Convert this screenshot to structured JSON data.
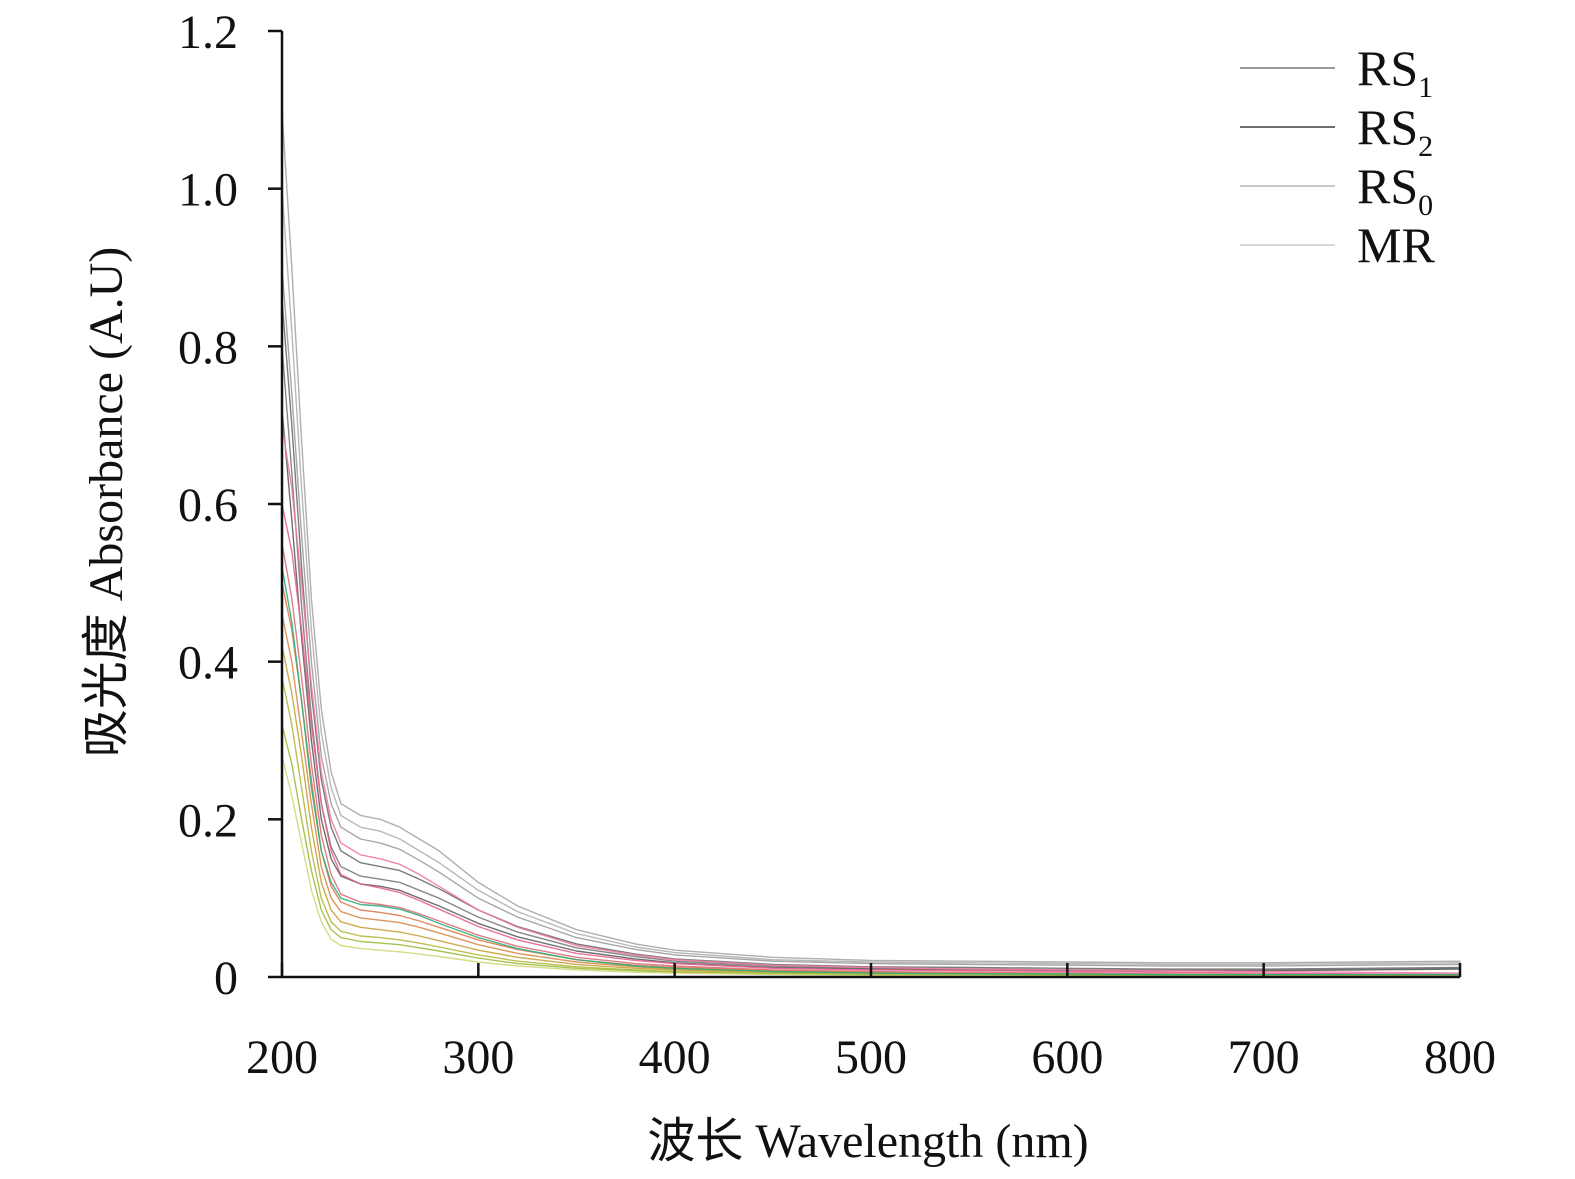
{
  "chart_data": {
    "type": "line",
    "title": "",
    "xlabel": "波长 Wavelength (nm)",
    "ylabel": "吸光度 Absorbance (A.U)",
    "xlim": [
      200,
      800
    ],
    "ylim": [
      0,
      1.2
    ],
    "x_ticks": [
      "200",
      "300",
      "400",
      "500",
      "600",
      "700",
      "800"
    ],
    "y_ticks": [
      "0",
      "0.2",
      "0.4",
      "0.6",
      "0.8",
      "1.0",
      "1.2"
    ],
    "grid": false,
    "legend_position": "top-right",
    "legend": [
      {
        "base": "RS",
        "sub": "1",
        "color": "#9a9a9a"
      },
      {
        "base": "RS",
        "sub": "2",
        "color": "#6f6f6f"
      },
      {
        "base": "RS",
        "sub": "0",
        "color": "#c8c8c8"
      },
      {
        "base": "MR",
        "sub": "",
        "color": "#d8d8d8"
      }
    ],
    "x": [
      200,
      205,
      210,
      215,
      220,
      225,
      230,
      240,
      250,
      260,
      270,
      280,
      300,
      320,
      350,
      380,
      400,
      450,
      500,
      550,
      600,
      650,
      700,
      750,
      800
    ],
    "series": [
      {
        "group": "RS1",
        "color": "#a6a6a6",
        "values": [
          1.1,
          0.9,
          0.68,
          0.48,
          0.34,
          0.26,
          0.22,
          0.205,
          0.2,
          0.19,
          0.175,
          0.16,
          0.12,
          0.09,
          0.06,
          0.042,
          0.034,
          0.025,
          0.021,
          0.02,
          0.019,
          0.018,
          0.018,
          0.019,
          0.02
        ]
      },
      {
        "group": "RS1",
        "color": "#b0b0b0",
        "values": [
          1.0,
          0.82,
          0.62,
          0.44,
          0.31,
          0.24,
          0.205,
          0.19,
          0.185,
          0.175,
          0.16,
          0.145,
          0.11,
          0.083,
          0.055,
          0.038,
          0.031,
          0.022,
          0.019,
          0.018,
          0.017,
          0.016,
          0.016,
          0.017,
          0.018
        ]
      },
      {
        "group": "RS1",
        "color": "#9c9c9c",
        "values": [
          0.9,
          0.74,
          0.56,
          0.4,
          0.28,
          0.22,
          0.19,
          0.175,
          0.17,
          0.162,
          0.148,
          0.133,
          0.1,
          0.076,
          0.05,
          0.035,
          0.028,
          0.02,
          0.017,
          0.016,
          0.015,
          0.014,
          0.014,
          0.015,
          0.016
        ]
      },
      {
        "group": "RS2",
        "color": "#6e6e6e",
        "values": [
          0.86,
          0.7,
          0.52,
          0.36,
          0.25,
          0.19,
          0.16,
          0.145,
          0.14,
          0.135,
          0.124,
          0.112,
          0.085,
          0.064,
          0.042,
          0.029,
          0.023,
          0.016,
          0.013,
          0.012,
          0.011,
          0.01,
          0.01,
          0.011,
          0.012
        ]
      },
      {
        "group": "RS2",
        "color": "#7a7a7a",
        "values": [
          0.8,
          0.64,
          0.47,
          0.33,
          0.22,
          0.165,
          0.14,
          0.128,
          0.124,
          0.12,
          0.11,
          0.1,
          0.076,
          0.057,
          0.037,
          0.026,
          0.02,
          0.014,
          0.011,
          0.01,
          0.009,
          0.009,
          0.009,
          0.01,
          0.011
        ]
      },
      {
        "group": "RS2",
        "color": "#5f5f5f",
        "values": [
          0.72,
          0.58,
          0.43,
          0.3,
          0.2,
          0.15,
          0.128,
          0.118,
          0.115,
          0.11,
          0.1,
          0.09,
          0.068,
          0.051,
          0.033,
          0.023,
          0.018,
          0.012,
          0.01,
          0.009,
          0.008,
          0.008,
          0.008,
          0.009,
          0.01
        ]
      },
      {
        "group": "MR",
        "color": "#f07aa0",
        "values": [
          0.7,
          0.62,
          0.5,
          0.37,
          0.26,
          0.2,
          0.17,
          0.155,
          0.15,
          0.143,
          0.13,
          0.115,
          0.085,
          0.063,
          0.04,
          0.028,
          0.022,
          0.015,
          0.012,
          0.01,
          0.009,
          0.008,
          0.007,
          0.006,
          0.005
        ]
      },
      {
        "group": "MR",
        "color": "#e8638f",
        "values": [
          0.6,
          0.54,
          0.44,
          0.32,
          0.22,
          0.16,
          0.13,
          0.118,
          0.113,
          0.107,
          0.097,
          0.086,
          0.064,
          0.047,
          0.03,
          0.021,
          0.017,
          0.011,
          0.009,
          0.008,
          0.007,
          0.006,
          0.005,
          0.004,
          0.003
        ]
      },
      {
        "group": "MR",
        "color": "#d9707a",
        "values": [
          0.55,
          0.48,
          0.38,
          0.27,
          0.18,
          0.13,
          0.105,
          0.095,
          0.092,
          0.088,
          0.08,
          0.071,
          0.053,
          0.039,
          0.025,
          0.017,
          0.014,
          0.009,
          0.007,
          0.006,
          0.005,
          0.004,
          0.003,
          0.003,
          0.002
        ]
      },
      {
        "group": "RS0",
        "color": "#e07a50",
        "values": [
          0.5,
          0.44,
          0.35,
          0.25,
          0.16,
          0.115,
          0.095,
          0.085,
          0.082,
          0.078,
          0.071,
          0.063,
          0.047,
          0.035,
          0.022,
          0.015,
          0.012,
          0.008,
          0.006,
          0.005,
          0.004,
          0.003,
          0.003,
          0.002,
          0.002
        ]
      },
      {
        "group": "RS0",
        "color": "#d98c4a",
        "values": [
          0.46,
          0.4,
          0.31,
          0.22,
          0.14,
          0.1,
          0.083,
          0.075,
          0.072,
          0.069,
          0.063,
          0.056,
          0.041,
          0.03,
          0.019,
          0.013,
          0.01,
          0.007,
          0.005,
          0.004,
          0.003,
          0.003,
          0.002,
          0.002,
          0.002
        ]
      },
      {
        "group": "RS0",
        "color": "#c7a33a",
        "values": [
          0.42,
          0.36,
          0.28,
          0.19,
          0.12,
          0.085,
          0.07,
          0.063,
          0.06,
          0.057,
          0.052,
          0.046,
          0.034,
          0.025,
          0.016,
          0.011,
          0.009,
          0.006,
          0.004,
          0.003,
          0.003,
          0.002,
          0.002,
          0.002,
          0.001
        ]
      },
      {
        "group": "RS0",
        "color": "#b5b83c",
        "values": [
          0.38,
          0.32,
          0.24,
          0.16,
          0.1,
          0.07,
          0.058,
          0.052,
          0.05,
          0.047,
          0.043,
          0.038,
          0.028,
          0.02,
          0.013,
          0.009,
          0.007,
          0.005,
          0.003,
          0.003,
          0.002,
          0.002,
          0.002,
          0.001,
          0.001
        ]
      },
      {
        "group": "RS0",
        "color": "#9cbd3f",
        "values": [
          0.32,
          0.27,
          0.2,
          0.135,
          0.085,
          0.06,
          0.05,
          0.045,
          0.043,
          0.041,
          0.037,
          0.033,
          0.024,
          0.017,
          0.011,
          0.008,
          0.006,
          0.004,
          0.003,
          0.002,
          0.002,
          0.002,
          0.001,
          0.001,
          0.001
        ]
      },
      {
        "group": "RS0",
        "color": "#2fae7a",
        "values": [
          0.52,
          0.45,
          0.35,
          0.24,
          0.16,
          0.12,
          0.1,
          0.092,
          0.09,
          0.086,
          0.078,
          0.068,
          0.05,
          0.036,
          0.022,
          0.014,
          0.011,
          0.007,
          0.005,
          0.004,
          0.004,
          0.003,
          0.003,
          0.003,
          0.003
        ]
      },
      {
        "group": "RS0",
        "color": "#d2d77a",
        "values": [
          0.28,
          0.23,
          0.17,
          0.11,
          0.07,
          0.048,
          0.04,
          0.036,
          0.034,
          0.032,
          0.029,
          0.026,
          0.019,
          0.014,
          0.009,
          0.006,
          0.005,
          0.003,
          0.002,
          0.002,
          0.001,
          0.001,
          0.001,
          0.001,
          0.001
        ]
      }
    ]
  }
}
